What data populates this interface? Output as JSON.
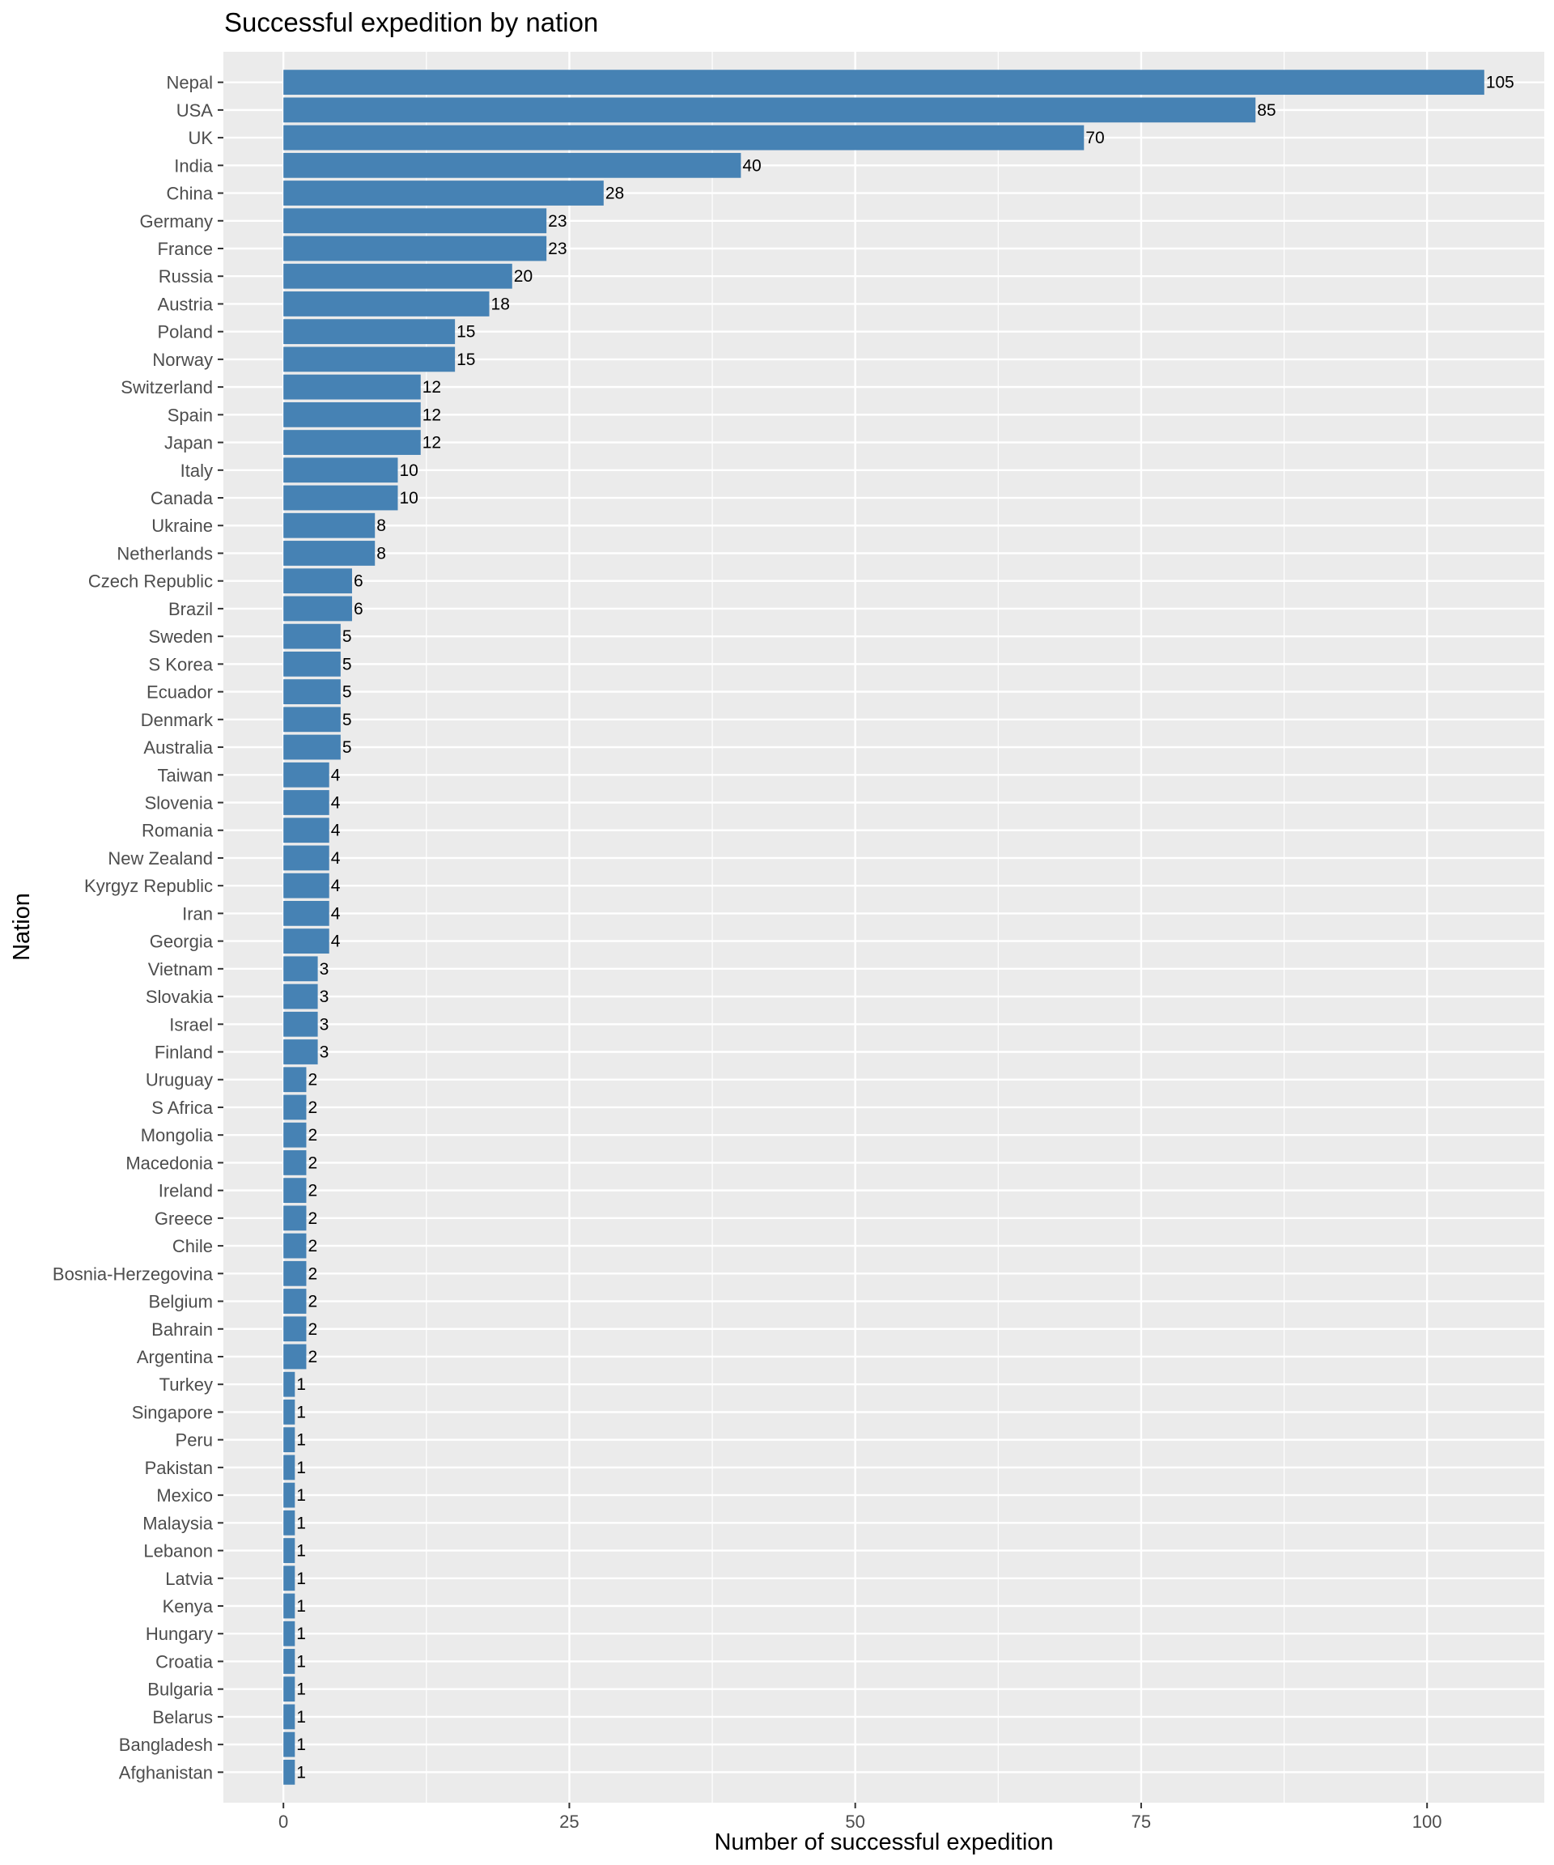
{
  "chart_data": {
    "type": "bar",
    "orientation": "horizontal",
    "title": "Successful expedition by nation",
    "xlabel": "Number of successful expedition",
    "ylabel": "Nation",
    "xlim": [
      -5.25,
      110.25
    ],
    "x_ticks": [
      0,
      25,
      50,
      75,
      100
    ],
    "grid": true,
    "legend": "none",
    "colors": {
      "bar": "#4682b4",
      "panel": "#ebebeb",
      "grid": "#ffffff",
      "tick_text": "#4d4d4d",
      "tick_mark": "#333333"
    },
    "categories": [
      "Nepal",
      "USA",
      "UK",
      "India",
      "China",
      "Germany",
      "France",
      "Russia",
      "Austria",
      "Poland",
      "Norway",
      "Switzerland",
      "Spain",
      "Japan",
      "Italy",
      "Canada",
      "Ukraine",
      "Netherlands",
      "Czech Republic",
      "Brazil",
      "Sweden",
      "S Korea",
      "Ecuador",
      "Denmark",
      "Australia",
      "Taiwan",
      "Slovenia",
      "Romania",
      "New Zealand",
      "Kyrgyz Republic",
      "Iran",
      "Georgia",
      "Vietnam",
      "Slovakia",
      "Israel",
      "Finland",
      "Uruguay",
      "S Africa",
      "Mongolia",
      "Macedonia",
      "Ireland",
      "Greece",
      "Chile",
      "Bosnia-Herzegovina",
      "Belgium",
      "Bahrain",
      "Argentina",
      "Turkey",
      "Singapore",
      "Peru",
      "Pakistan",
      "Mexico",
      "Malaysia",
      "Lebanon",
      "Latvia",
      "Kenya",
      "Hungary",
      "Croatia",
      "Bulgaria",
      "Belarus",
      "Bangladesh",
      "Afghanistan"
    ],
    "values": [
      105,
      85,
      70,
      40,
      28,
      23,
      23,
      20,
      18,
      15,
      15,
      12,
      12,
      12,
      10,
      10,
      8,
      8,
      6,
      6,
      5,
      5,
      5,
      5,
      5,
      4,
      4,
      4,
      4,
      4,
      4,
      4,
      3,
      3,
      3,
      3,
      2,
      2,
      2,
      2,
      2,
      2,
      2,
      2,
      2,
      2,
      2,
      1,
      1,
      1,
      1,
      1,
      1,
      1,
      1,
      1,
      1,
      1,
      1,
      1,
      1,
      1
    ]
  }
}
